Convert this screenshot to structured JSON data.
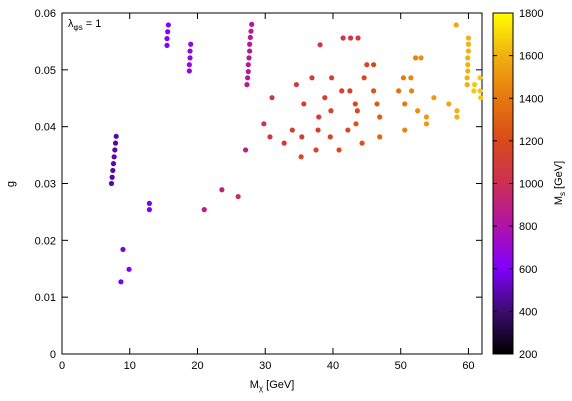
{
  "chart_data": {
    "type": "scatter",
    "annotation": {
      "main": "λ",
      "sub": "φs",
      "suffix": " = 1"
    },
    "xlabel": {
      "main": "M",
      "sub": "χ",
      "suffix": " [GeV]"
    },
    "ylabel": "g",
    "xlim": [
      0,
      62
    ],
    "ylim": [
      0,
      0.06
    ],
    "x_ticks": [
      0,
      10,
      20,
      30,
      40,
      50,
      60
    ],
    "y_ticks": [
      0,
      0.01,
      0.02,
      0.03,
      0.04,
      0.05,
      0.06
    ],
    "y_tick_labels": [
      "0",
      "0.01",
      "0.02",
      "0.03",
      "0.04",
      "0.05",
      "0.06"
    ],
    "colorbar": {
      "label": {
        "main": "M",
        "sub": "s",
        "suffix": " [GeV]"
      },
      "range": [
        200,
        1800
      ],
      "ticks": [
        200,
        400,
        600,
        800,
        1000,
        1200,
        1400,
        1600,
        1800
      ],
      "palette_stops": [
        "#000000",
        "#3b0c6e",
        "#8000ff",
        "#b012a8",
        "#cc2f55",
        "#d94a1a",
        "#e6780d",
        "#f2b012",
        "#ffff00"
      ]
    },
    "points": [
      {
        "x": 7.3,
        "y": 0.03,
        "z": 480
      },
      {
        "x": 7.4,
        "y": 0.0311,
        "z": 480
      },
      {
        "x": 7.5,
        "y": 0.0323,
        "z": 480
      },
      {
        "x": 7.6,
        "y": 0.0335,
        "z": 480
      },
      {
        "x": 7.7,
        "y": 0.0347,
        "z": 480
      },
      {
        "x": 7.8,
        "y": 0.0359,
        "z": 480
      },
      {
        "x": 7.9,
        "y": 0.0371,
        "z": 480
      },
      {
        "x": 8.0,
        "y": 0.0383,
        "z": 480
      },
      {
        "x": 8.7,
        "y": 0.0127,
        "z": 580
      },
      {
        "x": 9.0,
        "y": 0.0184,
        "z": 560
      },
      {
        "x": 9.9,
        "y": 0.0149,
        "z": 600
      },
      {
        "x": 12.9,
        "y": 0.0254,
        "z": 600
      },
      {
        "x": 12.9,
        "y": 0.0265,
        "z": 600
      },
      {
        "x": 15.5,
        "y": 0.0543,
        "z": 620
      },
      {
        "x": 15.5,
        "y": 0.0555,
        "z": 620
      },
      {
        "x": 15.6,
        "y": 0.0567,
        "z": 620
      },
      {
        "x": 15.7,
        "y": 0.0579,
        "z": 620
      },
      {
        "x": 18.8,
        "y": 0.0498,
        "z": 680
      },
      {
        "x": 18.8,
        "y": 0.0509,
        "z": 680
      },
      {
        "x": 18.9,
        "y": 0.0521,
        "z": 680
      },
      {
        "x": 18.9,
        "y": 0.0533,
        "z": 680
      },
      {
        "x": 19.0,
        "y": 0.0545,
        "z": 680
      },
      {
        "x": 21.0,
        "y": 0.0254,
        "z": 870
      },
      {
        "x": 23.6,
        "y": 0.0289,
        "z": 920
      },
      {
        "x": 26.0,
        "y": 0.0277,
        "z": 1000
      },
      {
        "x": 27.1,
        "y": 0.0359,
        "z": 890
      },
      {
        "x": 27.3,
        "y": 0.0474,
        "z": 840
      },
      {
        "x": 27.4,
        "y": 0.0486,
        "z": 840
      },
      {
        "x": 27.5,
        "y": 0.0497,
        "z": 840
      },
      {
        "x": 27.5,
        "y": 0.0509,
        "z": 840
      },
      {
        "x": 27.6,
        "y": 0.0521,
        "z": 840
      },
      {
        "x": 27.7,
        "y": 0.0533,
        "z": 840
      },
      {
        "x": 27.7,
        "y": 0.0545,
        "z": 840
      },
      {
        "x": 27.8,
        "y": 0.0557,
        "z": 840
      },
      {
        "x": 27.9,
        "y": 0.0568,
        "z": 840
      },
      {
        "x": 28.0,
        "y": 0.058,
        "z": 840
      },
      {
        "x": 29.8,
        "y": 0.0405,
        "z": 1020
      },
      {
        "x": 30.7,
        "y": 0.0382,
        "z": 1050
      },
      {
        "x": 31.0,
        "y": 0.0451,
        "z": 1050
      },
      {
        "x": 32.8,
        "y": 0.0371,
        "z": 1080
      },
      {
        "x": 34.0,
        "y": 0.0394,
        "z": 1120
      },
      {
        "x": 34.6,
        "y": 0.0474,
        "z": 1080
      },
      {
        "x": 35.3,
        "y": 0.0347,
        "z": 1160
      },
      {
        "x": 35.4,
        "y": 0.0382,
        "z": 1120
      },
      {
        "x": 35.7,
        "y": 0.044,
        "z": 1120
      },
      {
        "x": 36.9,
        "y": 0.0486,
        "z": 1080
      },
      {
        "x": 37.5,
        "y": 0.0359,
        "z": 1160
      },
      {
        "x": 37.8,
        "y": 0.0394,
        "z": 1120
      },
      {
        "x": 37.9,
        "y": 0.0417,
        "z": 1120
      },
      {
        "x": 38.1,
        "y": 0.0544,
        "z": 1050
      },
      {
        "x": 38.8,
        "y": 0.0451,
        "z": 1120
      },
      {
        "x": 39.6,
        "y": 0.0382,
        "z": 1160
      },
      {
        "x": 39.7,
        "y": 0.0428,
        "z": 1160
      },
      {
        "x": 39.8,
        "y": 0.0486,
        "z": 1120
      },
      {
        "x": 40.9,
        "y": 0.0359,
        "z": 1200
      },
      {
        "x": 41.3,
        "y": 0.0463,
        "z": 1120
      },
      {
        "x": 41.5,
        "y": 0.0556,
        "z": 1050
      },
      {
        "x": 42.2,
        "y": 0.0394,
        "z": 1200
      },
      {
        "x": 42.5,
        "y": 0.0463,
        "z": 1120
      },
      {
        "x": 42.6,
        "y": 0.0556,
        "z": 1050
      },
      {
        "x": 43.3,
        "y": 0.044,
        "z": 1200
      },
      {
        "x": 43.4,
        "y": 0.0405,
        "z": 1240
      },
      {
        "x": 43.6,
        "y": 0.0428,
        "z": 1200
      },
      {
        "x": 43.7,
        "y": 0.0556,
        "z": 1080
      },
      {
        "x": 44.3,
        "y": 0.0371,
        "z": 1240
      },
      {
        "x": 44.6,
        "y": 0.0486,
        "z": 1200
      },
      {
        "x": 45.0,
        "y": 0.0509,
        "z": 1160
      },
      {
        "x": 46.0,
        "y": 0.0509,
        "z": 1200
      },
      {
        "x": 46.0,
        "y": 0.0463,
        "z": 1240
      },
      {
        "x": 46.5,
        "y": 0.044,
        "z": 1280
      },
      {
        "x": 46.9,
        "y": 0.0417,
        "z": 1300
      },
      {
        "x": 46.9,
        "y": 0.0382,
        "z": 1320
      },
      {
        "x": 49.7,
        "y": 0.0463,
        "z": 1360
      },
      {
        "x": 50.4,
        "y": 0.0486,
        "z": 1400
      },
      {
        "x": 50.6,
        "y": 0.044,
        "z": 1400
      },
      {
        "x": 50.6,
        "y": 0.0394,
        "z": 1440
      },
      {
        "x": 51.5,
        "y": 0.0486,
        "z": 1440
      },
      {
        "x": 51.6,
        "y": 0.0463,
        "z": 1440
      },
      {
        "x": 52.2,
        "y": 0.0521,
        "z": 1440
      },
      {
        "x": 52.5,
        "y": 0.0428,
        "z": 1480
      },
      {
        "x": 53.0,
        "y": 0.0521,
        "z": 1480
      },
      {
        "x": 53.8,
        "y": 0.0405,
        "z": 1520
      },
      {
        "x": 53.8,
        "y": 0.0417,
        "z": 1520
      },
      {
        "x": 54.9,
        "y": 0.0451,
        "z": 1520
      },
      {
        "x": 57.1,
        "y": 0.044,
        "z": 1560
      },
      {
        "x": 58.2,
        "y": 0.0579,
        "z": 1560
      },
      {
        "x": 58.3,
        "y": 0.0428,
        "z": 1600
      },
      {
        "x": 58.3,
        "y": 0.0417,
        "z": 1600
      },
      {
        "x": 59.8,
        "y": 0.0474,
        "z": 1600
      },
      {
        "x": 59.8,
        "y": 0.0486,
        "z": 1600
      },
      {
        "x": 59.9,
        "y": 0.0498,
        "z": 1600
      },
      {
        "x": 59.9,
        "y": 0.0509,
        "z": 1600
      },
      {
        "x": 59.9,
        "y": 0.0521,
        "z": 1600
      },
      {
        "x": 60.0,
        "y": 0.0533,
        "z": 1600
      },
      {
        "x": 60.0,
        "y": 0.0545,
        "z": 1600
      },
      {
        "x": 60.0,
        "y": 0.0556,
        "z": 1600
      },
      {
        "x": 60.8,
        "y": 0.0463,
        "z": 1660
      },
      {
        "x": 60.9,
        "y": 0.0474,
        "z": 1660
      },
      {
        "x": 61.7,
        "y": 0.0486,
        "z": 1660
      },
      {
        "x": 61.7,
        "y": 0.0463,
        "z": 1660
      },
      {
        "x": 61.8,
        "y": 0.0451,
        "z": 1660
      }
    ]
  }
}
